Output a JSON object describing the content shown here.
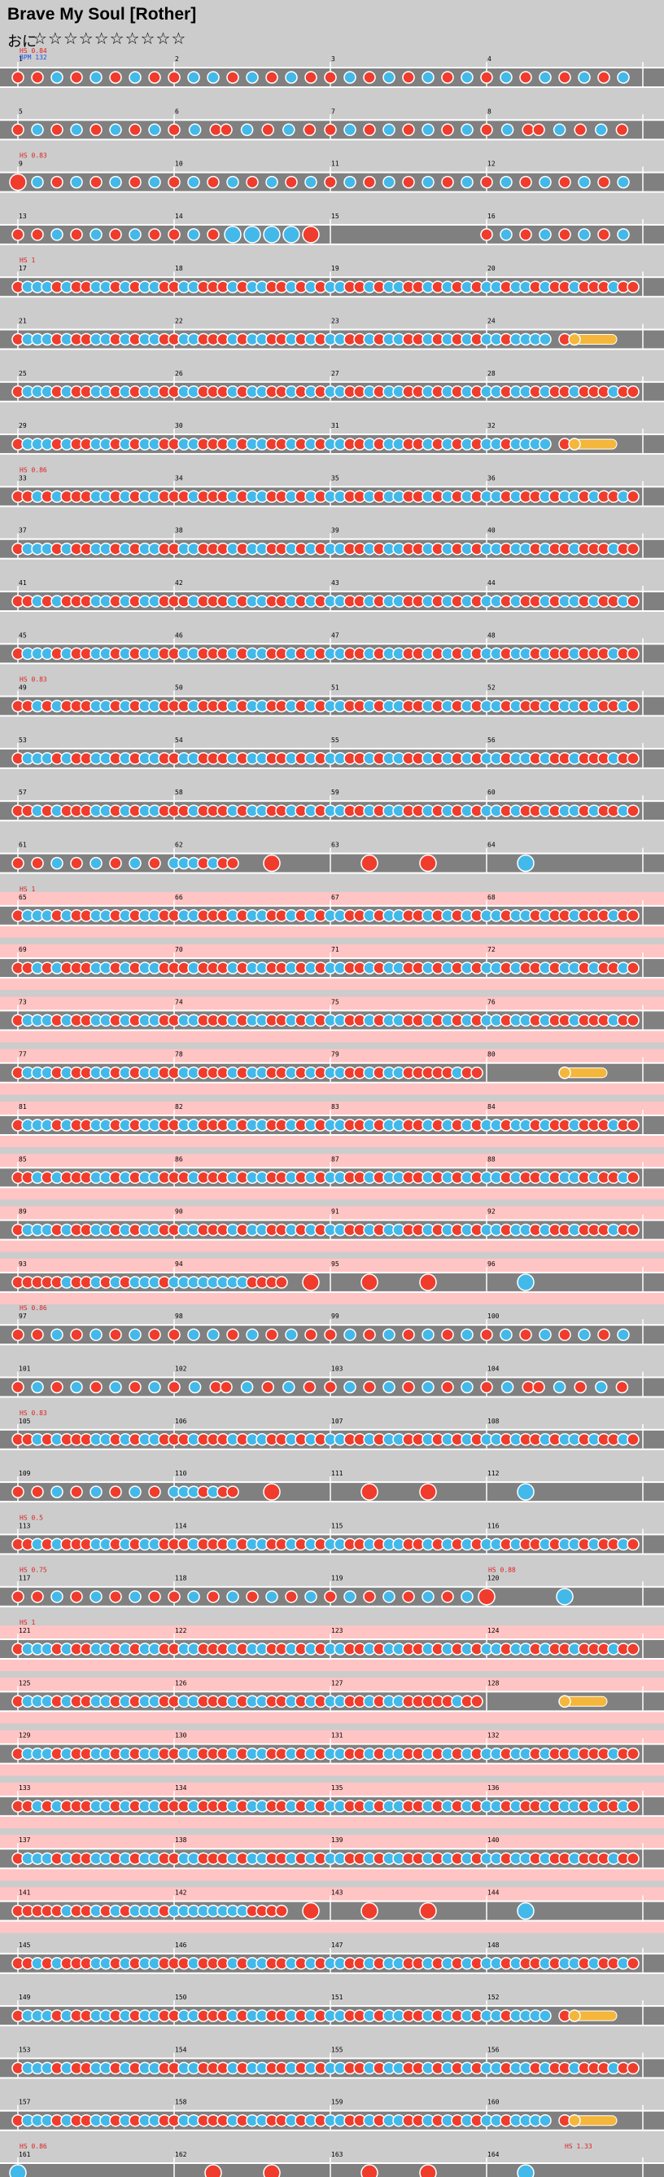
{
  "song": {
    "title": "Brave My Soul [Rother]",
    "course_label": "おに",
    "stars": "☆☆☆☆☆☆☆☆☆☆",
    "star_level": 10
  },
  "chart_info": {
    "bpm_label": "BPM 132",
    "first_measure_note": "HS 0.84",
    "ending_note": "HS 1.33"
  },
  "colors": {
    "background": "#cccccc",
    "lane": "#808080",
    "lane_border": "#ffffff",
    "gogo_band": "#ffc4c4",
    "don": "#f03c2c",
    "ka": "#43b9ea",
    "roll": "#f5b73b",
    "note_border": "#ffffff",
    "measure_line": "#ffffff",
    "label_red": "#e02020",
    "label_blue": "#2050e0"
  },
  "rows": [
    {
      "m": 1,
      "gogo": false,
      "label": "HS 0.84",
      "pattern": "A"
    },
    {
      "m": 5,
      "gogo": false,
      "label": "",
      "pattern": "B"
    },
    {
      "m": 9,
      "gogo": false,
      "label": "HS 0.83",
      "pattern": "C"
    },
    {
      "m": 13,
      "gogo": false,
      "label": "",
      "pattern": "D"
    },
    {
      "m": 17,
      "gogo": false,
      "label": "HS 1",
      "pattern": "E"
    },
    {
      "m": 21,
      "gogo": false,
      "label": "",
      "pattern": "F"
    },
    {
      "m": 25,
      "gogo": false,
      "label": "",
      "pattern": "E"
    },
    {
      "m": 29,
      "gogo": false,
      "label": "",
      "pattern": "F"
    },
    {
      "m": 33,
      "gogo": false,
      "label": "HS 0.86",
      "pattern": "G"
    },
    {
      "m": 37,
      "gogo": false,
      "label": "",
      "pattern": "E"
    },
    {
      "m": 41,
      "gogo": false,
      "label": "",
      "pattern": "G"
    },
    {
      "m": 45,
      "gogo": false,
      "label": "",
      "pattern": "E"
    },
    {
      "m": 49,
      "gogo": false,
      "label": "HS 0.83",
      "pattern": "G"
    },
    {
      "m": 53,
      "gogo": false,
      "label": "",
      "pattern": "E"
    },
    {
      "m": 57,
      "gogo": false,
      "label": "",
      "pattern": "G"
    },
    {
      "m": 61,
      "gogo": false,
      "label": "",
      "pattern": "H"
    },
    {
      "m": 65,
      "gogo": true,
      "label": "HS 1",
      "pattern": "E"
    },
    {
      "m": 69,
      "gogo": true,
      "label": "",
      "pattern": "G"
    },
    {
      "m": 73,
      "gogo": true,
      "label": "",
      "pattern": "E"
    },
    {
      "m": 77,
      "gogo": true,
      "label": "",
      "pattern": "I"
    },
    {
      "m": 81,
      "gogo": true,
      "label": "",
      "pattern": "E"
    },
    {
      "m": 85,
      "gogo": true,
      "label": "",
      "pattern": "G"
    },
    {
      "m": 89,
      "gogo": true,
      "label": "",
      "pattern": "E"
    },
    {
      "m": 93,
      "gogo": true,
      "label": "",
      "pattern": "J"
    },
    {
      "m": 97,
      "gogo": false,
      "label": "HS 0.86",
      "pattern": "A"
    },
    {
      "m": 101,
      "gogo": false,
      "label": "",
      "pattern": "B"
    },
    {
      "m": 105,
      "gogo": false,
      "label": "HS 0.83",
      "pattern": "G"
    },
    {
      "m": 109,
      "gogo": false,
      "label": "",
      "pattern": "H"
    },
    {
      "m": 113,
      "gogo": false,
      "label": "HS 0.5",
      "pattern": "G"
    },
    {
      "m": 117,
      "gogo": false,
      "label": "HS 0.75",
      "label2": "HS 0.88",
      "pattern": "K"
    },
    {
      "m": 121,
      "gogo": true,
      "label": "HS 1",
      "pattern": "E"
    },
    {
      "m": 125,
      "gogo": true,
      "label": "",
      "pattern": "I"
    },
    {
      "m": 129,
      "gogo": true,
      "label": "",
      "pattern": "E"
    },
    {
      "m": 133,
      "gogo": true,
      "label": "",
      "pattern": "G"
    },
    {
      "m": 137,
      "gogo": true,
      "label": "",
      "pattern": "E"
    },
    {
      "m": 141,
      "gogo": true,
      "label": "",
      "pattern": "J"
    },
    {
      "m": 145,
      "gogo": false,
      "label": "",
      "pattern": "G"
    },
    {
      "m": 149,
      "gogo": false,
      "label": "",
      "pattern": "F"
    },
    {
      "m": 153,
      "gogo": false,
      "label": "",
      "pattern": "E"
    },
    {
      "m": 157,
      "gogo": false,
      "label": "",
      "pattern": "F"
    },
    {
      "m": 161,
      "gogo": false,
      "label": "HS 0.86",
      "label4": "HS 1.33",
      "pattern": "L"
    }
  ],
  "patterns": {
    "A": "d.d.k.d.k.d.k.d.|d.k.k.d.k.d.k.d.|d.k.d.k.d.k.d.k.|d.k.d.k.d.k.d.k.",
    "B": "d.k.d.k.d.k.d.k.|d.k.dd.k.d.k.d.|d.k.d.k.d.k.d.k.|d.k.dd.k.d.k.d.",
    "C": "D.k.d.k.d.k.d.k.|d.k.d.k.d.k.d.k.|d.k.d.k.d.k.d.k.|d.k.d.k.d.k.d.k.",
    "D": "d.d.k.d.k.d.k.d.|d.k.d.K.K.K.K.D.|................|d.k.d.k.d.k.d.k.",
    "E": "dkkkdkddkkdkdkkd|dkkdddkdkkddkdkd|kkddkdkkddkdkdkd|kkdkkdkddkdddkdd",
    "F": "dkkkdkddkkdkdkkd|dkkdddkdkkddkdkd|kkddkdkkddkdkdkd|kkdkkkk.dr......",
    "G": "ddkdkdddkkdkdkkd|ddkdddkdkkddkdkd|kkddkdkkddkdkdkd|kkdkddkdkkdkddkd",
    "H": "d.d.k.d.k.d.k.d.|kkkdkdd...D.....|....D.....D.....|....K...........",
    "I": "dkkkdkddkkdkdkkd|dkkdddkdkkddkdkd|kkddkdkkdddddkdd|........r.......",
    "J": "dddddkddkdkdkkkd|kkkkkkkkdddd..D.|....D.....D.....|....K...........",
    "K": "d.d.k.d.k.d.k.d.|d.k.d.k.d.k.d.k.|d.k.d.k.d.k.d.k.|D.......K.......",
    "L": "K...............|....D.....D.....|....D.....D.....|....K..........."
  }
}
